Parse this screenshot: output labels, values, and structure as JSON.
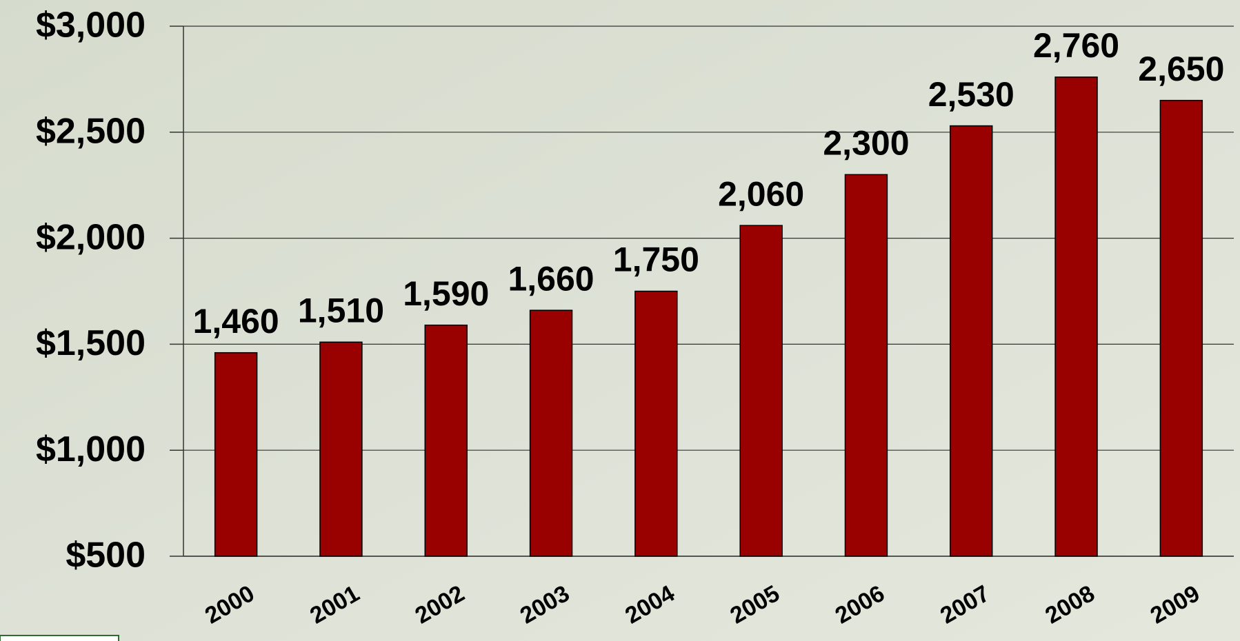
{
  "chart_data": {
    "type": "bar",
    "categories": [
      "2000",
      "2001",
      "2002",
      "2003",
      "2004",
      "2005",
      "2006",
      "2007",
      "2008",
      "2009"
    ],
    "values": [
      1460,
      1510,
      1590,
      1660,
      1750,
      2060,
      2300,
      2530,
      2760,
      2650
    ],
    "value_labels": [
      "1,460",
      "1,510",
      "1,590",
      "1,660",
      "1,750",
      "2,060",
      "2,300",
      "2,530",
      "2,760",
      "2,650"
    ],
    "color": "#990000",
    "ylim": [
      500,
      3000
    ],
    "yticks": [
      {
        "value": 500,
        "label": "$500"
      },
      {
        "value": 1000,
        "label": "$1,000"
      },
      {
        "value": 1500,
        "label": "$1,500"
      },
      {
        "value": 2000,
        "label": "$2,000"
      },
      {
        "value": 2500,
        "label": "$2,500"
      },
      {
        "value": 3000,
        "label": "$3,000"
      }
    ],
    "grid": true
  }
}
